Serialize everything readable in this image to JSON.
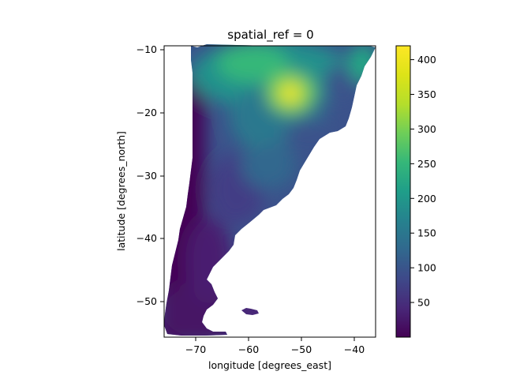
{
  "chart_data": {
    "type": "heatmap",
    "title": "spatial_ref = 0",
    "xlabel": "longitude [degrees_east]",
    "ylabel": "latitude [degrees_north]",
    "xlim": [
      -75.6,
      -35.8
    ],
    "ylim": [
      -55.8,
      -9.6
    ],
    "xticks": [
      -70,
      -60,
      -50,
      -40
    ],
    "xtick_labels": [
      "−70",
      "−60",
      "−50",
      "−40"
    ],
    "yticks": [
      -10,
      -20,
      -30,
      -40,
      -50
    ],
    "ytick_labels": [
      "−10",
      "−20",
      "−30",
      "−40",
      "−50"
    ],
    "colorbar": {
      "colormap": "viridis",
      "range": [
        0,
        420
      ],
      "ticks": [
        50,
        100,
        150,
        200,
        250,
        300,
        350,
        400
      ],
      "tick_labels": [
        "50",
        "100",
        "150",
        "200",
        "250",
        "300",
        "350",
        "400"
      ]
    },
    "grid": false
  }
}
